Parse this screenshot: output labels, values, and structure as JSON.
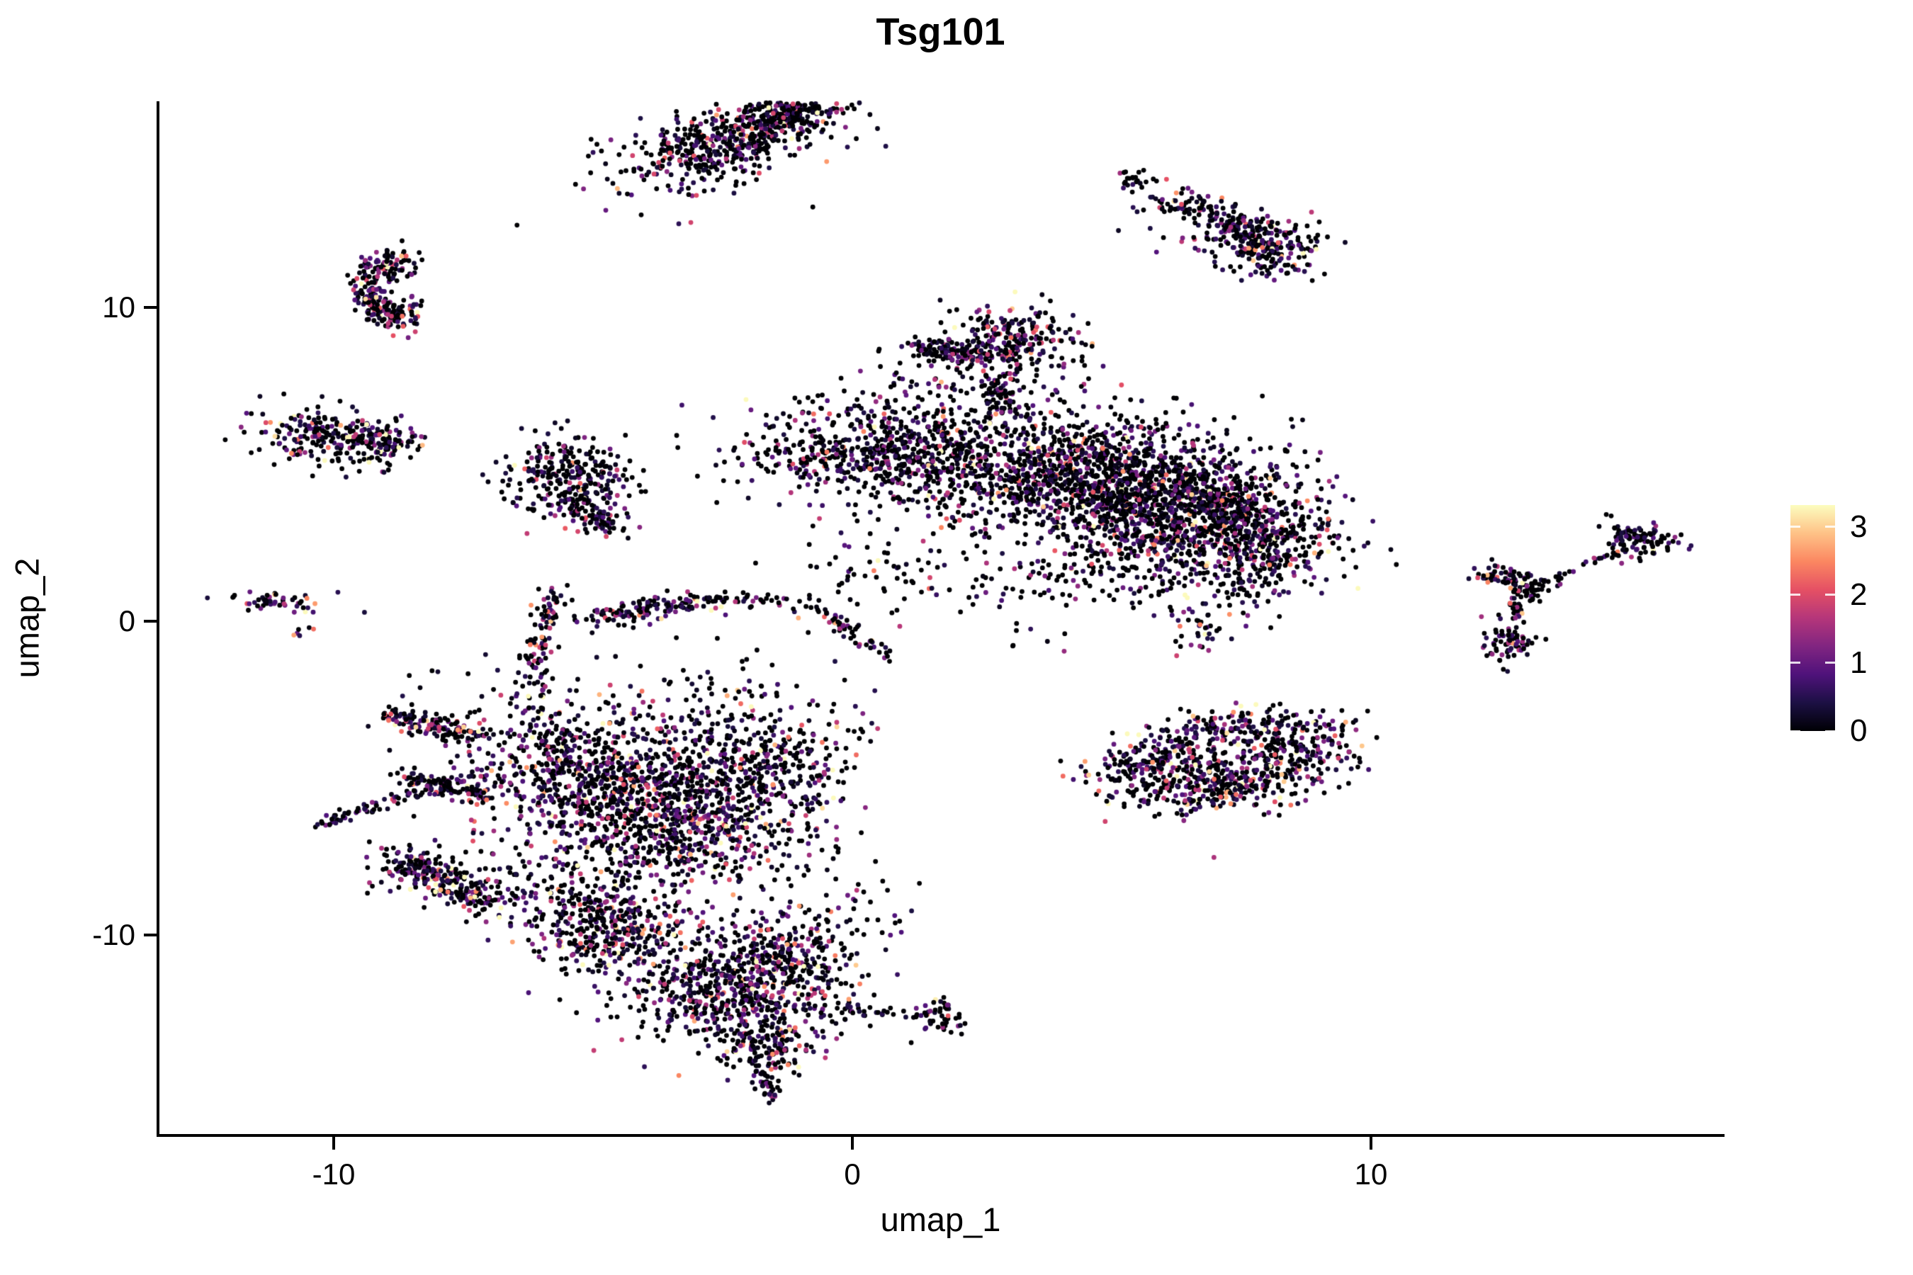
{
  "title": {
    "text": "Tsg101"
  },
  "axes": {
    "x_label": "umap_1",
    "y_label": "umap_2",
    "x_ticks": [
      {
        "value": -10,
        "label": "-10"
      },
      {
        "value": 0,
        "label": "0"
      },
      {
        "value": 10,
        "label": "10"
      }
    ],
    "y_ticks": [
      {
        "value": -10,
        "label": "-10"
      },
      {
        "value": 0,
        "label": "0"
      },
      {
        "value": 10,
        "label": "10"
      }
    ]
  },
  "legend": {
    "ticks": [
      {
        "value": 0,
        "label": "0"
      },
      {
        "value": 1,
        "label": "1"
      },
      {
        "value": 2,
        "label": "2"
      },
      {
        "value": 3,
        "label": "3"
      }
    ],
    "scale_max": 3.32,
    "colormap_name": "magma",
    "colormap": [
      {
        "t": 0.0,
        "color": "#000004"
      },
      {
        "t": 0.125,
        "color": "#1C1044"
      },
      {
        "t": 0.25,
        "color": "#4F127B"
      },
      {
        "t": 0.375,
        "color": "#812581"
      },
      {
        "t": 0.5,
        "color": "#B5367A"
      },
      {
        "t": 0.625,
        "color": "#E55064"
      },
      {
        "t": 0.75,
        "color": "#FB8761"
      },
      {
        "t": 0.875,
        "color": "#FEC287"
      },
      {
        "t": 1.0,
        "color": "#FCFDBF"
      }
    ]
  },
  "chart_data": {
    "type": "scatter",
    "title": "Tsg101",
    "xlabel": "umap_1",
    "ylabel": "umap_2",
    "xlim": [
      -13.4,
      16.8
    ],
    "ylim": [
      -16.4,
      16.6
    ],
    "x_tick_values": [
      -10,
      0,
      10
    ],
    "y_tick_values": [
      -10,
      0,
      10
    ],
    "grid": false,
    "legend_position": "right",
    "color_scale": {
      "min": 0,
      "max": 3.32,
      "palette": "magma"
    },
    "point_radius_px": 3.4,
    "description": "UMAP embedding of single cells colored by Tsg101 expression (0-3); most cells near 0 (black), scattered mid/high expressing cells (purple to salmon).",
    "clusters": [
      {
        "id": "top-a1",
        "type": "gauss",
        "cx": -2.3,
        "cy": 15.35,
        "sx": 1.05,
        "sy": 0.5,
        "rot": 28,
        "n": 420,
        "p0": 0.5,
        "lam": 0.85
      },
      {
        "id": "top-a2",
        "type": "gauss",
        "cx": -1.05,
        "cy": 16.35,
        "sx": 0.5,
        "sy": 0.33,
        "rot": 30,
        "n": 200,
        "p0": 0.55,
        "lam": 0.8
      },
      {
        "id": "top-a3",
        "type": "gauss",
        "cx": -2.5,
        "cy": 15.1,
        "sx": 1.5,
        "sy": 0.85,
        "rot": 28,
        "n": 110,
        "p0": 0.5,
        "lam": 0.85
      },
      {
        "id": "tr-b1",
        "type": "gauss",
        "cx": 5.42,
        "cy": 14.1,
        "sx": 0.22,
        "sy": 0.15,
        "rot": -30,
        "n": 22,
        "p0": 0.5,
        "lam": 0.85
      },
      {
        "id": "tr-b2",
        "type": "line",
        "x1": 5.95,
        "y1": 13.5,
        "x2": 8.0,
        "y2": 12.3,
        "w": 0.22,
        "n": 150,
        "p0": 0.45,
        "lam": 0.95
      },
      {
        "id": "tr-b3",
        "type": "gauss",
        "cx": 8.05,
        "cy": 11.9,
        "sx": 0.5,
        "sy": 0.45,
        "rot": -20,
        "n": 170,
        "p0": 0.45,
        "lam": 0.95
      },
      {
        "id": "tr-b4",
        "type": "gauss",
        "cx": 7.0,
        "cy": 12.35,
        "sx": 0.9,
        "sy": 0.5,
        "rot": -25,
        "n": 60,
        "p0": 0.42,
        "lam": 1.0
      },
      {
        "id": "left-c",
        "type": "arc",
        "cx": -8.85,
        "cy": 10.55,
        "rx": 0.48,
        "ry": 0.85,
        "a0": 50,
        "a1": 320,
        "jr": 0.17,
        "n": 260,
        "p0": 0.4,
        "lam": 0.95
      },
      {
        "id": "left-d",
        "type": "gauss",
        "cx": -9.95,
        "cy": 5.8,
        "sx": 0.8,
        "sy": 0.42,
        "rot": -8,
        "n": 270,
        "p0": 0.45,
        "lam": 0.9
      },
      {
        "id": "left-d2",
        "type": "line",
        "x1": -9.1,
        "y1": 5.85,
        "x2": -8.72,
        "y2": 5.65,
        "w": 0.13,
        "n": 30,
        "p0": 0.5,
        "lam": 0.8
      },
      {
        "id": "mid-e1",
        "type": "gauss",
        "cx": -5.55,
        "cy": 4.5,
        "sx": 0.6,
        "sy": 0.7,
        "rot": 0,
        "n": 260,
        "p0": 0.55,
        "lam": 0.75
      },
      {
        "id": "mid-e2",
        "type": "line",
        "x1": -5.35,
        "y1": 3.9,
        "x2": -4.7,
        "y2": 2.95,
        "w": 0.18,
        "n": 70,
        "p0": 0.5,
        "lam": 0.8
      },
      {
        "id": "mid-e3",
        "type": "gauss",
        "cx": -4.6,
        "cy": 4.3,
        "sx": 0.35,
        "sy": 0.65,
        "rot": 0,
        "n": 35,
        "p0": 0.5,
        "lam": 0.8
      },
      {
        "id": "left-f1",
        "type": "gauss",
        "cx": -10.95,
        "cy": 0.6,
        "sx": 0.55,
        "sy": 0.17,
        "rot": -8,
        "n": 52,
        "p0": 0.42,
        "lam": 0.95
      },
      {
        "id": "left-f2",
        "type": "gauss",
        "cx": -10.6,
        "cy": -0.35,
        "sx": 0.12,
        "sy": 0.12,
        "rot": 0,
        "n": 6,
        "p0": 0.4,
        "lam": 1.2
      },
      {
        "id": "c-g1",
        "type": "gauss",
        "cx": 0.55,
        "cy": 5.3,
        "sx": 1.35,
        "sy": 0.78,
        "rot": -5,
        "n": 620,
        "p0": 0.5,
        "lam": 0.85
      },
      {
        "id": "c-g2",
        "type": "gauss",
        "cx": 3.05,
        "cy": 8.85,
        "sx": 0.62,
        "sy": 0.6,
        "rot": 0,
        "n": 250,
        "p0": 0.45,
        "lam": 0.85
      },
      {
        "id": "c-g2b",
        "type": "line",
        "x1": 2.85,
        "y1": 7.9,
        "x2": 2.8,
        "y2": 6.6,
        "w": 0.2,
        "n": 70,
        "p0": 0.5,
        "lam": 0.85
      },
      {
        "id": "c-g3",
        "type": "line",
        "x1": 1.1,
        "y1": 8.75,
        "x2": 2.4,
        "y2": 8.55,
        "w": 0.18,
        "n": 100,
        "p0": 0.4,
        "lam": 0.9
      },
      {
        "id": "c-g3b",
        "type": "gauss",
        "cx": 1.6,
        "cy": 7.3,
        "sx": 0.8,
        "sy": 0.8,
        "rot": 0,
        "n": 90,
        "p0": 0.5,
        "lam": 0.85
      },
      {
        "id": "c-g4a",
        "type": "gauss",
        "cx": 4.3,
        "cy": 4.7,
        "sx": 1.5,
        "sy": 1.05,
        "rot": -10,
        "n": 1150,
        "p0": 0.52,
        "lam": 0.8
      },
      {
        "id": "c-g4b",
        "type": "gauss",
        "cx": 6.4,
        "cy": 3.4,
        "sx": 1.35,
        "sy": 1.15,
        "rot": -18,
        "n": 1050,
        "p0": 0.52,
        "lam": 0.8
      },
      {
        "id": "c-g4c",
        "type": "gauss",
        "cx": 7.95,
        "cy": 2.45,
        "sx": 0.55,
        "sy": 0.85,
        "rot": -15,
        "n": 260,
        "p0": 0.5,
        "lam": 0.85
      },
      {
        "id": "c-g4d",
        "type": "line",
        "x1": 6.5,
        "y1": 4.4,
        "x2": 7.6,
        "y2": 3.3,
        "w": 0.3,
        "n": 150,
        "p0": 0.5,
        "lam": 0.8
      },
      {
        "id": "c-g5",
        "type": "gauss",
        "cx": 4.0,
        "cy": 1.3,
        "sx": 1.6,
        "sy": 0.5,
        "rot": 0,
        "n": 90,
        "p0": 0.55,
        "lam": 0.8
      },
      {
        "id": "c-g5b",
        "type": "gauss",
        "cx": 6.7,
        "cy": -0.2,
        "sx": 0.3,
        "sy": 0.4,
        "rot": 0,
        "n": 40,
        "p0": 0.5,
        "lam": 0.85
      },
      {
        "id": "c-g6",
        "type": "gauss",
        "cx": 0.6,
        "cy": 1.5,
        "sx": 1.0,
        "sy": 1.0,
        "rot": 0,
        "n": 70,
        "p0": 0.5,
        "lam": 0.85
      },
      {
        "id": "c-g7",
        "type": "gauss",
        "cx": 3.3,
        "cy": -0.6,
        "sx": 0.5,
        "sy": 0.3,
        "rot": 0,
        "n": 8,
        "p0": 0.5,
        "lam": 0.85
      },
      {
        "id": "rm-h1a",
        "type": "gauss",
        "cx": 5.75,
        "cy": -4.5,
        "sx": 0.65,
        "sy": 0.42,
        "rot": 15,
        "n": 200,
        "p0": 0.45,
        "lam": 1.0
      },
      {
        "id": "rm-h1b",
        "type": "gauss",
        "cx": 7.0,
        "cy": -5.3,
        "sx": 0.85,
        "sy": 0.45,
        "rot": 0,
        "n": 290,
        "p0": 0.45,
        "lam": 1.0
      },
      {
        "id": "rm-h1c",
        "type": "gauss",
        "cx": 8.55,
        "cy": -4.15,
        "sx": 0.75,
        "sy": 0.55,
        "rot": 28,
        "n": 250,
        "p0": 0.45,
        "lam": 1.0
      },
      {
        "id": "rm-h2",
        "type": "line",
        "x1": 6.0,
        "y1": -3.6,
        "x2": 8.3,
        "y2": -3.2,
        "w": 0.35,
        "n": 130,
        "p0": 0.35,
        "lam": 1.05
      },
      {
        "id": "fr-i1",
        "type": "gauss",
        "cx": 12.55,
        "cy": 1.42,
        "sx": 0.3,
        "sy": 0.18,
        "rot": -10,
        "n": 55,
        "p0": 0.4,
        "lam": 1.0
      },
      {
        "id": "fr-i2",
        "type": "gauss",
        "cx": 13.05,
        "cy": 1.05,
        "sx": 0.2,
        "sy": 0.16,
        "rot": 0,
        "n": 48,
        "p0": 0.6,
        "lam": 0.7
      },
      {
        "id": "fr-i3",
        "type": "line",
        "x1": 13.3,
        "y1": 1.25,
        "x2": 13.85,
        "y2": 1.55,
        "w": 0.06,
        "n": 11,
        "p0": 0.6,
        "lam": 0.7
      },
      {
        "id": "fr-i4",
        "type": "line",
        "x1": 12.75,
        "y1": 0.75,
        "x2": 12.85,
        "y2": 0.1,
        "w": 0.07,
        "n": 22,
        "p0": 0.6,
        "lam": 0.7
      },
      {
        "id": "fr-i5",
        "type": "gauss",
        "cx": 12.7,
        "cy": -0.6,
        "sx": 0.28,
        "sy": 0.33,
        "rot": 0,
        "n": 75,
        "p0": 0.55,
        "lam": 0.85
      },
      {
        "id": "fr-j1",
        "type": "gauss",
        "cx": 15.2,
        "cy": 2.6,
        "sx": 0.38,
        "sy": 0.3,
        "rot": -15,
        "n": 105,
        "p0": 0.55,
        "lam": 0.8
      },
      {
        "id": "fr-j2",
        "type": "line",
        "x1": 14.1,
        "y1": 1.85,
        "x2": 14.75,
        "y2": 2.15,
        "w": 0.07,
        "n": 13,
        "p0": 0.6,
        "lam": 0.7
      },
      {
        "id": "bl-k1",
        "type": "arc",
        "cx": -5.35,
        "cy": -1.6,
        "rx": 0.75,
        "ry": 2.45,
        "a0": 95,
        "a1": 262,
        "jr": 0.16,
        "n": 140,
        "p0": 0.42,
        "lam": 0.9
      },
      {
        "id": "bl-k2",
        "type": "line",
        "x1": -5.1,
        "y1": 0.1,
        "x2": -2.4,
        "y2": 0.75,
        "w": 0.18,
        "n": 150,
        "p0": 0.45,
        "lam": 0.9
      },
      {
        "id": "bl-k2b",
        "type": "line",
        "x1": -2.3,
        "y1": 0.7,
        "x2": -0.9,
        "y2": 0.55,
        "w": 0.1,
        "n": 25,
        "p0": 0.5,
        "lam": 0.85
      },
      {
        "id": "bl-k2c",
        "type": "line",
        "x1": -0.8,
        "y1": 0.5,
        "x2": 0.8,
        "y2": -1.2,
        "w": 0.12,
        "n": 55,
        "p0": 0.48,
        "lam": 0.85
      },
      {
        "id": "bl-k3a",
        "type": "line",
        "x1": -8.95,
        "y1": -3.0,
        "x2": -7.3,
        "y2": -3.6,
        "w": 0.18,
        "n": 130,
        "p0": 0.42,
        "lam": 0.9
      },
      {
        "id": "bl-k3b",
        "type": "line",
        "x1": -8.6,
        "y1": -4.9,
        "x2": -7.1,
        "y2": -5.55,
        "w": 0.16,
        "n": 105,
        "p0": 0.42,
        "lam": 0.9
      },
      {
        "id": "bl-k3c",
        "type": "line",
        "x1": -10.4,
        "y1": -6.55,
        "x2": -7.0,
        "y2": -4.75,
        "w": 0.09,
        "n": 95,
        "p0": 0.42,
        "lam": 0.9
      },
      {
        "id": "bl-k4a",
        "type": "gauss",
        "cx": -5.0,
        "cy": -5.2,
        "sx": 1.05,
        "sy": 0.85,
        "rot": -15,
        "n": 480,
        "p0": 0.42,
        "lam": 0.95
      },
      {
        "id": "bl-k4b",
        "type": "gauss",
        "cx": -3.2,
        "cy": -6.3,
        "sx": 1.25,
        "sy": 0.95,
        "rot": -10,
        "n": 580,
        "p0": 0.42,
        "lam": 0.95
      },
      {
        "id": "bl-k4c",
        "type": "gauss",
        "cx": -1.9,
        "cy": -5.0,
        "sx": 0.85,
        "sy": 0.95,
        "rot": 0,
        "n": 330,
        "p0": 0.45,
        "lam": 0.9
      },
      {
        "id": "bl-k5",
        "type": "line",
        "x1": -8.8,
        "y1": -7.6,
        "x2": -6.9,
        "y2": -9.0,
        "w": 0.28,
        "n": 210,
        "p0": 0.4,
        "lam": 0.9
      },
      {
        "id": "bl-k5b",
        "type": "gauss",
        "cx": -7.6,
        "cy": -8.2,
        "sx": 0.9,
        "sy": 0.7,
        "rot": 0,
        "n": 90,
        "p0": 0.45,
        "lam": 0.9
      },
      {
        "id": "bl-k6",
        "type": "gauss",
        "cx": -5.6,
        "cy": -3.6,
        "sx": 1.7,
        "sy": 1.1,
        "rot": -10,
        "n": 230,
        "p0": 0.45,
        "lam": 0.9
      },
      {
        "id": "bl-k7",
        "type": "gauss",
        "cx": -2.2,
        "cy": -3.3,
        "sx": 1.2,
        "sy": 1.0,
        "rot": 0,
        "n": 170,
        "p0": 0.45,
        "lam": 0.9
      },
      {
        "id": "bl-k8",
        "type": "gauss",
        "cx": -4.0,
        "cy": -7.6,
        "sx": 1.3,
        "sy": 0.6,
        "rot": 0,
        "n": 140,
        "p0": 0.45,
        "lam": 0.9
      },
      {
        "id": "bot-l1",
        "type": "gauss",
        "cx": -4.8,
        "cy": -9.6,
        "sx": 0.95,
        "sy": 0.75,
        "rot": -38,
        "n": 430,
        "p0": 0.42,
        "lam": 0.95
      },
      {
        "id": "bot-l2",
        "type": "gauss",
        "cx": -2.3,
        "cy": -11.8,
        "sx": 1.15,
        "sy": 0.9,
        "rot": -15,
        "n": 620,
        "p0": 0.42,
        "lam": 0.95
      },
      {
        "id": "bot-l2b",
        "type": "gauss",
        "cx": -1.35,
        "cy": -10.6,
        "sx": 0.6,
        "sy": 0.55,
        "rot": 0,
        "n": 160,
        "p0": 0.45,
        "lam": 0.9
      },
      {
        "id": "bot-l3",
        "type": "gauss",
        "cx": -1.75,
        "cy": -13.6,
        "sx": 0.42,
        "sy": 0.6,
        "rot": 0,
        "n": 130,
        "p0": 0.45,
        "lam": 0.9
      },
      {
        "id": "bot-l3b",
        "type": "line",
        "x1": -1.75,
        "y1": -14.4,
        "x2": -1.55,
        "y2": -15.2,
        "w": 0.12,
        "n": 30,
        "p0": 0.45,
        "lam": 0.9
      },
      {
        "id": "bot-l4",
        "type": "line",
        "x1": -0.9,
        "y1": -12.3,
        "x2": 1.5,
        "y2": -12.55,
        "w": 0.1,
        "n": 40,
        "p0": 0.5,
        "lam": 0.9
      },
      {
        "id": "bot-l4b",
        "type": "gauss",
        "cx": 1.75,
        "cy": -12.6,
        "sx": 0.22,
        "sy": 0.28,
        "rot": 0,
        "n": 45,
        "p0": 0.5,
        "lam": 0.9
      },
      {
        "id": "bot-l5",
        "type": "gauss",
        "cx": -0.5,
        "cy": -9.5,
        "sx": 1.0,
        "sy": 1.2,
        "rot": 0,
        "n": 90,
        "p0": 0.5,
        "lam": 0.9
      }
    ]
  }
}
